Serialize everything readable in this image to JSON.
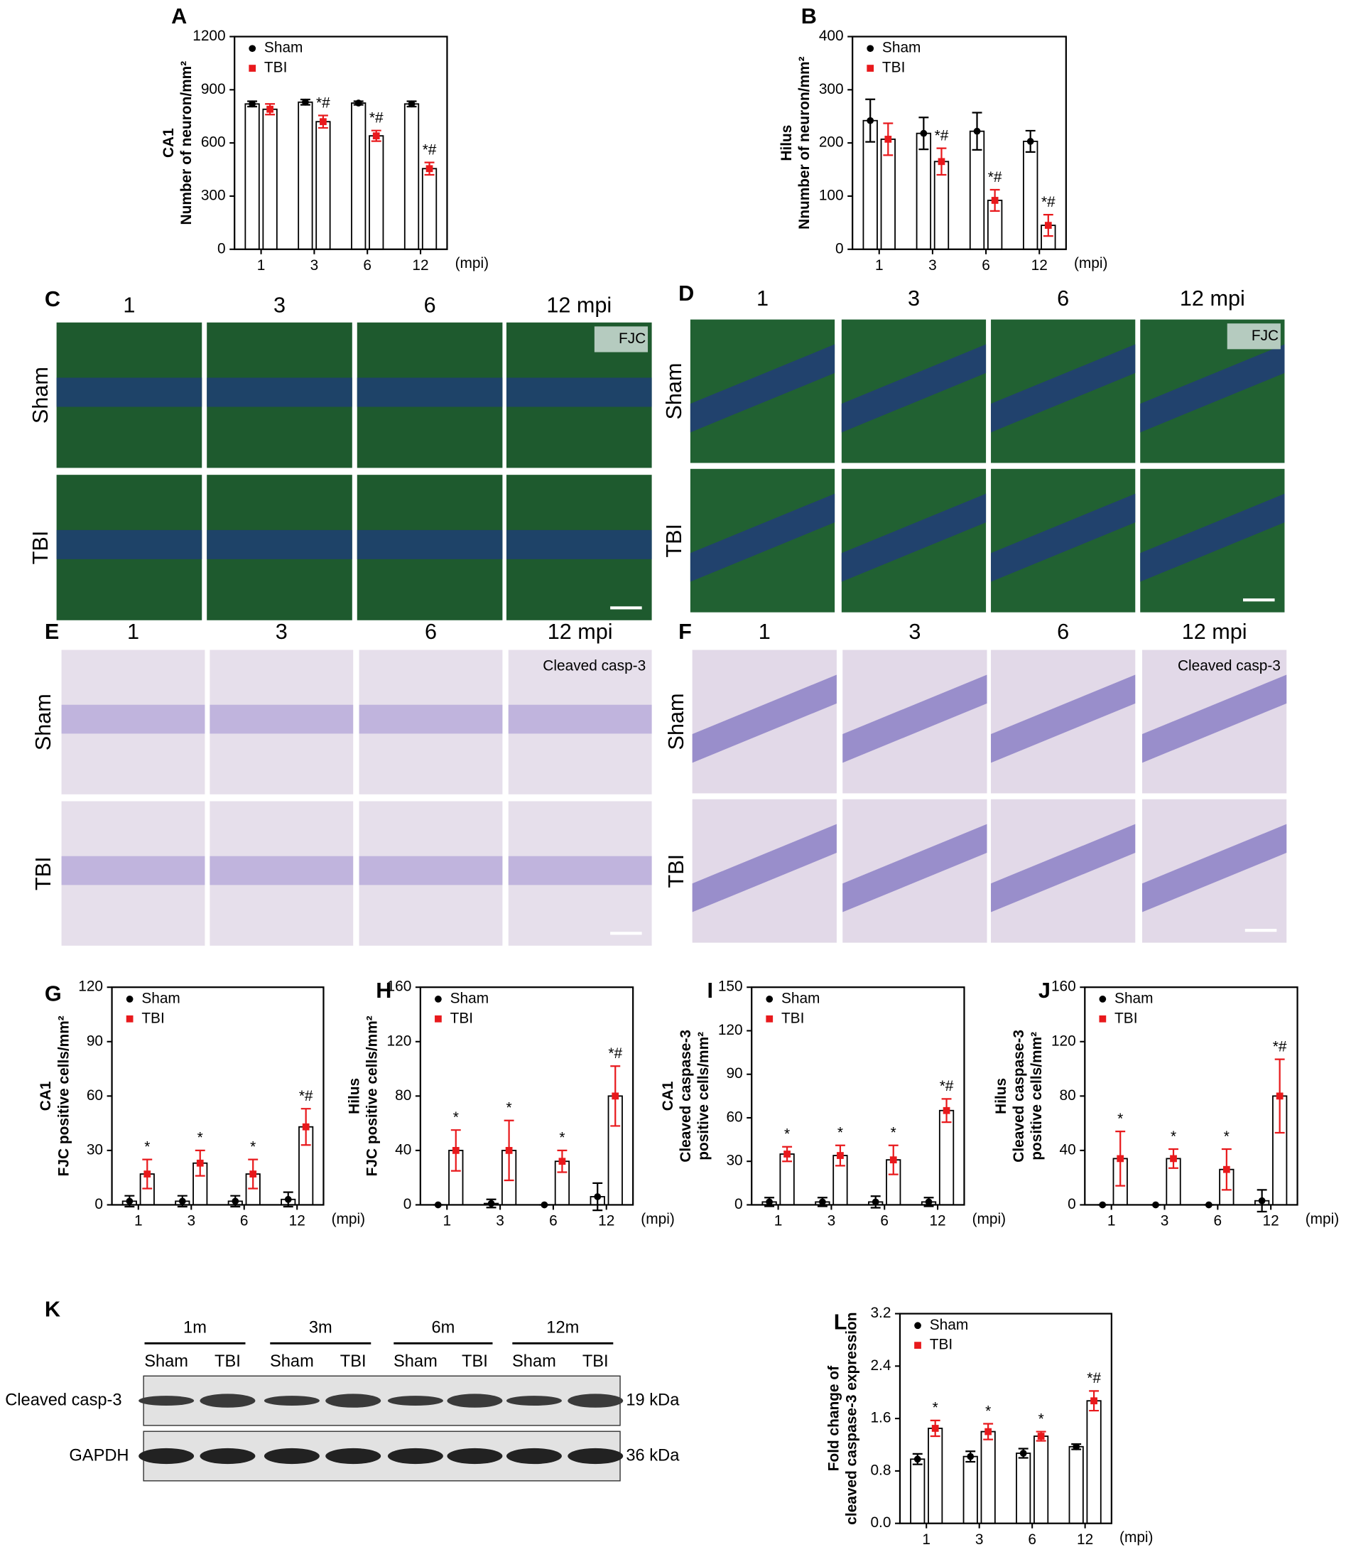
{
  "chart_data": [
    {
      "type": "bar",
      "panel": "A",
      "ylabel": [
        "CA1",
        "Number of neuron/mm²"
      ],
      "categories": [
        "1",
        "3",
        "6",
        "12"
      ],
      "x_unit": "(mpi)",
      "ylim": [
        0,
        1200
      ],
      "yticks": [
        0,
        300,
        600,
        900,
        1200
      ],
      "legend": "upper left",
      "series": [
        {
          "name": "Sham",
          "color": "#000000",
          "values": [
            820,
            830,
            825,
            820
          ],
          "errors": [
            15,
            15,
            10,
            15
          ]
        },
        {
          "name": "TBI",
          "color": "#e8191c",
          "values": [
            790,
            720,
            640,
            455
          ],
          "errors": [
            30,
            35,
            30,
            35
          ]
        }
      ],
      "significance": [
        null,
        "*#",
        "*#",
        "*#"
      ]
    },
    {
      "type": "bar",
      "panel": "B",
      "ylabel": [
        "Hilus",
        "Nnumber of neuron/mm²"
      ],
      "categories": [
        "1",
        "3",
        "6",
        "12"
      ],
      "x_unit": "(mpi)",
      "ylim": [
        0,
        400
      ],
      "yticks": [
        0,
        100,
        200,
        300,
        400
      ],
      "legend": "upper left",
      "series": [
        {
          "name": "Sham",
          "color": "#000000",
          "values": [
            242,
            218,
            222,
            203
          ],
          "errors": [
            40,
            30,
            35,
            20
          ]
        },
        {
          "name": "TBI",
          "color": "#e8191c",
          "values": [
            207,
            165,
            92,
            45
          ],
          "errors": [
            30,
            25,
            20,
            20
          ]
        }
      ],
      "significance": [
        null,
        "*#",
        "*#",
        "*#"
      ]
    },
    {
      "type": "bar",
      "panel": "G",
      "ylabel": [
        "CA1",
        "FJC positive cells/mm²"
      ],
      "categories": [
        "1",
        "3",
        "6",
        "12"
      ],
      "x_unit": "(mpi)",
      "ylim": [
        0,
        120
      ],
      "yticks": [
        0,
        30,
        60,
        90,
        120
      ],
      "legend": "upper left",
      "series": [
        {
          "name": "Sham",
          "color": "#000000",
          "values": [
            2,
            2,
            2,
            3
          ],
          "errors": [
            3,
            3,
            3,
            4
          ]
        },
        {
          "name": "TBI",
          "color": "#e8191c",
          "values": [
            17,
            23,
            17,
            43
          ],
          "errors": [
            8,
            7,
            8,
            10
          ]
        }
      ],
      "significance": [
        "*",
        "*",
        "*",
        "*#"
      ]
    },
    {
      "type": "bar",
      "panel": "H",
      "ylabel": [
        "Hilus",
        "FJC positive cells/mm²"
      ],
      "categories": [
        "1",
        "3",
        "6",
        "12"
      ],
      "x_unit": "(mpi)",
      "ylim": [
        0,
        160
      ],
      "yticks": [
        0,
        40,
        80,
        120,
        160
      ],
      "legend": "upper left",
      "series": [
        {
          "name": "Sham",
          "color": "#000000",
          "values": [
            0,
            1,
            0,
            6
          ],
          "errors": [
            0,
            3,
            0,
            10
          ]
        },
        {
          "name": "TBI",
          "color": "#e8191c",
          "values": [
            40,
            40,
            32,
            80
          ],
          "errors": [
            15,
            22,
            8,
            22
          ]
        }
      ],
      "significance": [
        "*",
        "*",
        "*",
        "*#"
      ]
    },
    {
      "type": "bar",
      "panel": "I",
      "ylabel": [
        "CA1",
        "Cleaved caspase-3",
        "positive cells/mm²"
      ],
      "categories": [
        "1",
        "3",
        "6",
        "12"
      ],
      "x_unit": "(mpi)",
      "ylim": [
        0,
        150
      ],
      "yticks": [
        0,
        30,
        60,
        90,
        120,
        150
      ],
      "legend": "upper left",
      "series": [
        {
          "name": "Sham",
          "color": "#000000",
          "values": [
            2,
            2,
            2,
            2
          ],
          "errors": [
            3,
            3,
            4,
            3
          ]
        },
        {
          "name": "TBI",
          "color": "#e8191c",
          "values": [
            35,
            34,
            31,
            65
          ],
          "errors": [
            5,
            7,
            10,
            8
          ]
        }
      ],
      "significance": [
        "*",
        "*",
        "*",
        "*#"
      ]
    },
    {
      "type": "bar",
      "panel": "J",
      "ylabel": [
        "Hilus",
        "Cleaved caspase-3",
        "positive cells/mm²"
      ],
      "categories": [
        "1",
        "3",
        "6",
        "12"
      ],
      "x_unit": "(mpi)",
      "ylim": [
        0,
        160
      ],
      "yticks": [
        0,
        40,
        80,
        120,
        160
      ],
      "legend": "upper left",
      "series": [
        {
          "name": "Sham",
          "color": "#000000",
          "values": [
            0,
            0,
            0,
            3
          ],
          "errors": [
            0,
            0,
            0,
            8
          ]
        },
        {
          "name": "TBI",
          "color": "#e8191c",
          "values": [
            34,
            34,
            26,
            80
          ],
          "errors": [
            20,
            7,
            15,
            27
          ]
        }
      ],
      "significance": [
        "*",
        "*",
        "*",
        "*#"
      ]
    },
    {
      "type": "bar",
      "panel": "L",
      "ylabel": [
        "Fold change of",
        "cleaved caspase-3 expression"
      ],
      "categories": [
        "1",
        "3",
        "6",
        "12"
      ],
      "x_unit": "(mpi)",
      "ylim": [
        0,
        3.2
      ],
      "yticks": [
        {
          "value": 0,
          "label": "0.0"
        },
        0.8,
        1.6,
        2.4,
        3.2
      ],
      "legend": "upper left",
      "series": [
        {
          "name": "Sham",
          "color": "#000000",
          "values": [
            0.98,
            1.02,
            1.07,
            1.17
          ],
          "errors": [
            0.08,
            0.08,
            0.07,
            0.04
          ]
        },
        {
          "name": "TBI",
          "color": "#e8191c",
          "values": [
            1.45,
            1.4,
            1.33,
            1.87
          ],
          "errors": [
            0.12,
            0.12,
            0.07,
            0.15
          ]
        }
      ],
      "significance": [
        "*",
        "*",
        "*",
        "*#"
      ]
    }
  ],
  "micrographs": [
    {
      "panel": "C",
      "columns": [
        "1",
        "3",
        "6",
        "12 mpi"
      ],
      "rows": [
        "Sham",
        "TBI"
      ],
      "stain": "FJC"
    },
    {
      "panel": "D",
      "columns": [
        "1",
        "3",
        "6",
        "12 mpi"
      ],
      "rows": [
        "Sham",
        "TBI"
      ],
      "stain": "FJC"
    },
    {
      "panel": "E",
      "columns": [
        "1",
        "3",
        "6",
        "12 mpi"
      ],
      "rows": [
        "Sham",
        "TBI"
      ],
      "stain": "Cleaved casp-3"
    },
    {
      "panel": "F",
      "columns": [
        "1",
        "3",
        "6",
        "12 mpi"
      ],
      "rows": [
        "Sham",
        "TBI"
      ],
      "stain": "Cleaved casp-3"
    }
  ],
  "western_blot": {
    "panel": "K",
    "timepoints": [
      "1m",
      "3m",
      "6m",
      "12m"
    ],
    "lanes": [
      "Sham",
      "TBI",
      "Sham",
      "TBI",
      "Sham",
      "TBI",
      "Sham",
      "TBI"
    ],
    "proteins": [
      "Cleaved casp-3",
      "GAPDH"
    ],
    "sizes": [
      "19 kDa",
      "36 kDa"
    ]
  }
}
